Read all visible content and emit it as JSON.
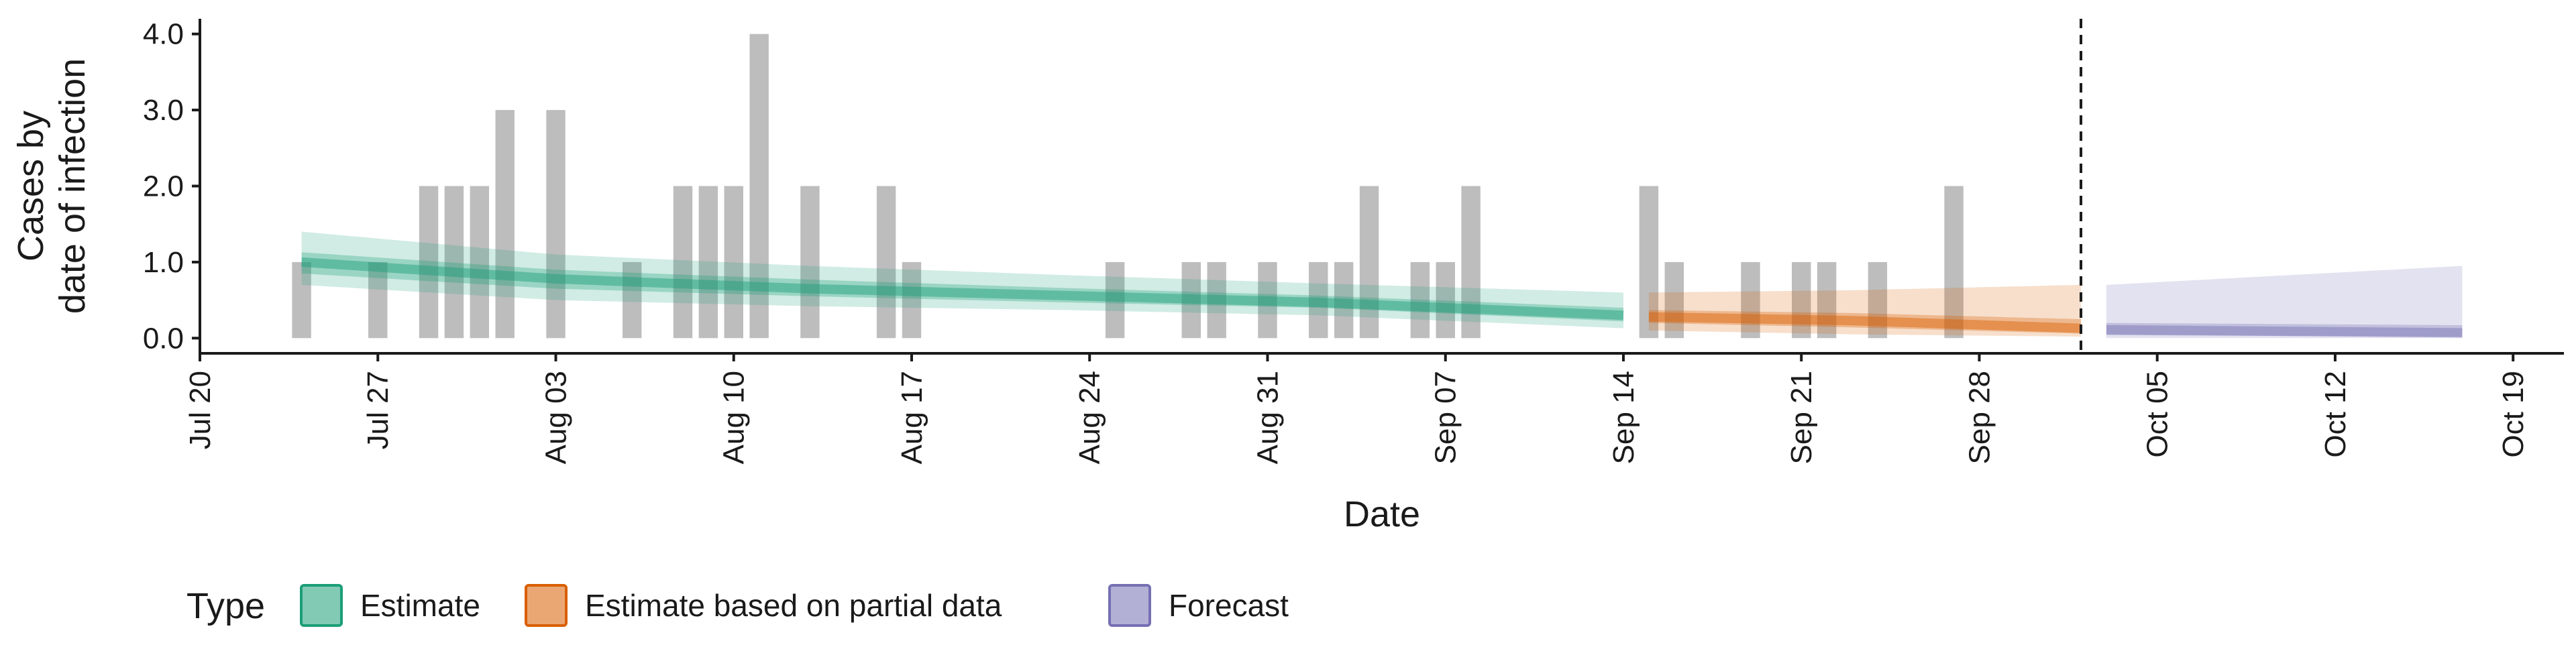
{
  "chart_data": {
    "type": "bar",
    "xlabel": "Date",
    "ylabel_lines": [
      "Cases by",
      "date of infection"
    ],
    "ylim": [
      -0.2,
      4.2
    ],
    "yticks": [
      0.0,
      1.0,
      2.0,
      3.0,
      4.0
    ],
    "ytick_labels": [
      "0.0",
      "1.0",
      "2.0",
      "3.0",
      "4.0"
    ],
    "xlim": [
      "2020-07-20",
      "2020-10-21"
    ],
    "xticks": [
      "2020-07-20",
      "2020-07-27",
      "2020-08-03",
      "2020-08-10",
      "2020-08-17",
      "2020-08-24",
      "2020-08-31",
      "2020-09-07",
      "2020-09-14",
      "2020-09-21",
      "2020-09-28",
      "2020-10-05",
      "2020-10-12",
      "2020-10-19"
    ],
    "xtick_labels": [
      "Jul 20",
      "Jul 27",
      "Aug 03",
      "Aug 10",
      "Aug 17",
      "Aug 24",
      "Aug 31",
      "Sep 07",
      "Sep 14",
      "Sep 21",
      "Sep 28",
      "Oct 05",
      "Oct 12",
      "Oct 19"
    ],
    "forecast_cutoff": "2020-10-02",
    "bar_color": "#bdbdbd",
    "observed_cases": [
      {
        "date": "2020-07-24",
        "value": 1
      },
      {
        "date": "2020-07-27",
        "value": 1
      },
      {
        "date": "2020-07-29",
        "value": 2
      },
      {
        "date": "2020-07-30",
        "value": 2
      },
      {
        "date": "2020-07-31",
        "value": 2
      },
      {
        "date": "2020-08-01",
        "value": 3
      },
      {
        "date": "2020-08-03",
        "value": 3
      },
      {
        "date": "2020-08-06",
        "value": 1
      },
      {
        "date": "2020-08-08",
        "value": 2
      },
      {
        "date": "2020-08-09",
        "value": 2
      },
      {
        "date": "2020-08-10",
        "value": 2
      },
      {
        "date": "2020-08-11",
        "value": 4
      },
      {
        "date": "2020-08-13",
        "value": 2
      },
      {
        "date": "2020-08-16",
        "value": 2
      },
      {
        "date": "2020-08-17",
        "value": 1
      },
      {
        "date": "2020-08-25",
        "value": 1
      },
      {
        "date": "2020-08-28",
        "value": 1
      },
      {
        "date": "2020-08-29",
        "value": 1
      },
      {
        "date": "2020-08-31",
        "value": 1
      },
      {
        "date": "2020-09-02",
        "value": 1
      },
      {
        "date": "2020-09-03",
        "value": 1
      },
      {
        "date": "2020-09-04",
        "value": 2
      },
      {
        "date": "2020-09-06",
        "value": 1
      },
      {
        "date": "2020-09-07",
        "value": 1
      },
      {
        "date": "2020-09-08",
        "value": 2
      },
      {
        "date": "2020-09-15",
        "value": 2
      },
      {
        "date": "2020-09-16",
        "value": 1
      },
      {
        "date": "2020-09-19",
        "value": 1
      },
      {
        "date": "2020-09-21",
        "value": 1
      },
      {
        "date": "2020-09-22",
        "value": 1
      },
      {
        "date": "2020-09-24",
        "value": 1
      },
      {
        "date": "2020-09-27",
        "value": 2
      }
    ],
    "series": [
      {
        "name": "Estimate",
        "color": "#1b9e77",
        "points": [
          {
            "date": "2020-07-24",
            "median": 1.0,
            "lower90": 0.7,
            "upper90": 1.4,
            "lower50": 0.85,
            "upper50": 1.13
          },
          {
            "date": "2020-08-03",
            "median": 0.78,
            "lower90": 0.5,
            "upper90": 1.1,
            "lower50": 0.65,
            "upper50": 0.9
          },
          {
            "date": "2020-08-13",
            "median": 0.65,
            "lower90": 0.42,
            "upper90": 0.95,
            "lower50": 0.55,
            "upper50": 0.77
          },
          {
            "date": "2020-08-23",
            "median": 0.56,
            "lower90": 0.37,
            "upper90": 0.83,
            "lower50": 0.47,
            "upper50": 0.66
          },
          {
            "date": "2020-09-02",
            "median": 0.47,
            "lower90": 0.3,
            "upper90": 0.72,
            "lower50": 0.4,
            "upper50": 0.56
          },
          {
            "date": "2020-09-14",
            "median": 0.3,
            "lower90": 0.13,
            "upper90": 0.6,
            "lower50": 0.22,
            "upper50": 0.4
          }
        ]
      },
      {
        "name": "Estimate based on partial data",
        "color": "#d95f02",
        "points": [
          {
            "date": "2020-09-15",
            "median": 0.28,
            "lower90": 0.1,
            "upper90": 0.6,
            "lower50": 0.2,
            "upper50": 0.37
          },
          {
            "date": "2020-09-23",
            "median": 0.23,
            "lower90": 0.05,
            "upper90": 0.63,
            "lower50": 0.14,
            "upper50": 0.33
          },
          {
            "date": "2020-10-02",
            "median": 0.13,
            "lower90": 0.02,
            "upper90": 0.7,
            "lower50": 0.06,
            "upper50": 0.25
          }
        ]
      },
      {
        "name": "Forecast",
        "color": "#7570b3",
        "points": [
          {
            "date": "2020-10-03",
            "median": 0.11,
            "lower90": 0.0,
            "upper90": 0.7,
            "lower50": 0.04,
            "upper50": 0.2
          },
          {
            "date": "2020-10-17",
            "median": 0.07,
            "lower90": 0.0,
            "upper90": 0.95,
            "lower50": 0.02,
            "upper50": 0.17
          }
        ]
      }
    ],
    "legend": {
      "title": "Type",
      "position": "bottom",
      "entries": [
        {
          "label": "Estimate",
          "color": "#1b9e77"
        },
        {
          "label": "Estimate based on partial data",
          "color": "#d95f02"
        },
        {
          "label": "Forecast",
          "color": "#7570b3"
        }
      ]
    },
    "grid": false
  }
}
